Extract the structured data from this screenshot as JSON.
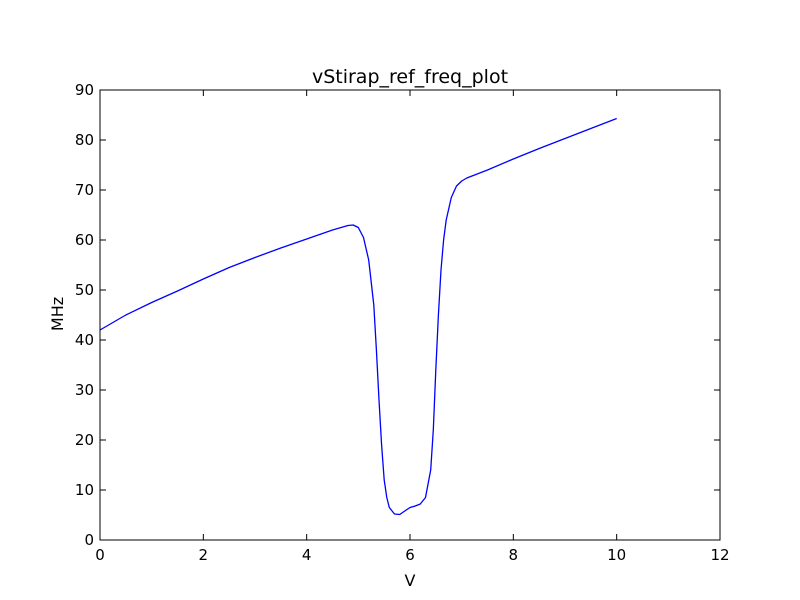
{
  "chart_data": {
    "type": "line",
    "title": "vStirap_ref_freq_plot",
    "xlabel": "V",
    "ylabel": "MHz",
    "xlim": [
      0,
      12
    ],
    "ylim": [
      0,
      90
    ],
    "xticks": [
      "0",
      "2",
      "4",
      "6",
      "8",
      "10",
      "12"
    ],
    "yticks": [
      "0",
      "10",
      "20",
      "30",
      "40",
      "50",
      "60",
      "70",
      "80",
      "90"
    ],
    "grid": false,
    "legend": "none",
    "series": [
      {
        "color": "#0000ff",
        "x": [
          0,
          0.5,
          1.0,
          1.5,
          2.0,
          2.5,
          3.0,
          3.5,
          4.0,
          4.5,
          4.8,
          4.9,
          5.0,
          5.1,
          5.2,
          5.3,
          5.35,
          5.4,
          5.45,
          5.5,
          5.55,
          5.6,
          5.7,
          5.8,
          5.9,
          6.0,
          6.1,
          6.2,
          6.3,
          6.4,
          6.45,
          6.5,
          6.55,
          6.6,
          6.65,
          6.7,
          6.8,
          6.9,
          7.0,
          7.1,
          7.2,
          7.5,
          8.0,
          8.5,
          9.0,
          9.5,
          10.0
        ],
        "y": [
          42.0,
          45.0,
          47.5,
          49.8,
          52.2,
          54.5,
          56.5,
          58.4,
          60.2,
          62.0,
          62.9,
          63.0,
          62.5,
          60.5,
          56.0,
          47.0,
          38.0,
          28.0,
          19.0,
          12.0,
          8.5,
          6.5,
          5.2,
          5.1,
          5.8,
          6.5,
          6.8,
          7.2,
          8.5,
          14.0,
          22.0,
          34.0,
          45.0,
          54.0,
          60.0,
          64.0,
          68.5,
          70.8,
          71.8,
          72.4,
          72.8,
          74.0,
          76.2,
          78.3,
          80.3,
          82.3,
          84.3
        ]
      }
    ]
  }
}
